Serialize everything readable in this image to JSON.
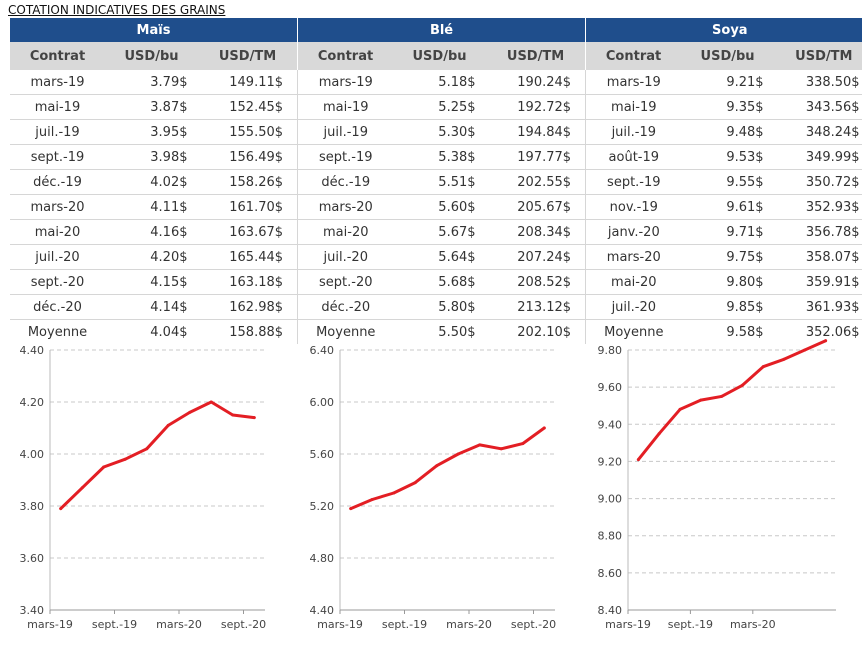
{
  "title": "COTATION INDICATIVES DES GRAINS",
  "headers": {
    "contract": "Contrat",
    "usd_bu": "USD/bu",
    "usd_tm": "USD/TM"
  },
  "groups": [
    {
      "name": "Maïs",
      "rows": [
        [
          "mars-19",
          "3.79$",
          "149.11$"
        ],
        [
          "mai-19",
          "3.87$",
          "152.45$"
        ],
        [
          "juil.-19",
          "3.95$",
          "155.50$"
        ],
        [
          "sept.-19",
          "3.98$",
          "156.49$"
        ],
        [
          "déc.-19",
          "4.02$",
          "158.26$"
        ],
        [
          "mars-20",
          "4.11$",
          "161.70$"
        ],
        [
          "mai-20",
          "4.16$",
          "163.67$"
        ],
        [
          "juil.-20",
          "4.20$",
          "165.44$"
        ],
        [
          "sept.-20",
          "4.15$",
          "163.18$"
        ],
        [
          "déc.-20",
          "4.14$",
          "162.98$"
        ],
        [
          "Moyenne",
          "4.04$",
          "158.88$"
        ]
      ]
    },
    {
      "name": "Blé",
      "rows": [
        [
          "mars-19",
          "5.18$",
          "190.24$"
        ],
        [
          "mai-19",
          "5.25$",
          "192.72$"
        ],
        [
          "juil.-19",
          "5.30$",
          "194.84$"
        ],
        [
          "sept.-19",
          "5.38$",
          "197.77$"
        ],
        [
          "déc.-19",
          "5.51$",
          "202.55$"
        ],
        [
          "mars-20",
          "5.60$",
          "205.67$"
        ],
        [
          "mai-20",
          "5.67$",
          "208.34$"
        ],
        [
          "juil.-20",
          "5.64$",
          "207.24$"
        ],
        [
          "sept.-20",
          "5.68$",
          "208.52$"
        ],
        [
          "déc.-20",
          "5.80$",
          "213.12$"
        ],
        [
          "Moyenne",
          "5.50$",
          "202.10$"
        ]
      ]
    },
    {
      "name": "Soya",
      "rows": [
        [
          "mars-19",
          "9.21$",
          "338.50$"
        ],
        [
          "mai-19",
          "9.35$",
          "343.56$"
        ],
        [
          "juil.-19",
          "9.48$",
          "348.24$"
        ],
        [
          "août-19",
          "9.53$",
          "349.99$"
        ],
        [
          "sept.-19",
          "9.55$",
          "350.72$"
        ],
        [
          "nov.-19",
          "9.61$",
          "352.93$"
        ],
        [
          "janv.-20",
          "9.71$",
          "356.78$"
        ],
        [
          "mars-20",
          "9.75$",
          "358.07$"
        ],
        [
          "mai-20",
          "9.80$",
          "359.91$"
        ],
        [
          "juil.-20",
          "9.85$",
          "361.93$"
        ],
        [
          "Moyenne",
          "9.58$",
          "352.06$"
        ]
      ]
    }
  ],
  "chart_data": [
    {
      "type": "line",
      "name": "Maïs",
      "color": "#e31e24",
      "x": [
        "mars-19",
        "mai-19",
        "juil.-19",
        "sept.-19",
        "déc.-19",
        "mars-20",
        "mai-20",
        "juil.-20",
        "sept.-20",
        "déc.-20"
      ],
      "values": [
        3.79,
        3.87,
        3.95,
        3.98,
        4.02,
        4.11,
        4.16,
        4.2,
        4.15,
        4.14
      ],
      "ylim": [
        3.4,
        4.4
      ],
      "yticks": [
        "3.40",
        "3.60",
        "3.80",
        "4.00",
        "4.20",
        "4.40"
      ],
      "xtick_labels": [
        "mars-19",
        "sept.-19",
        "mars-20",
        "sept.-20"
      ],
      "grid": true
    },
    {
      "type": "line",
      "name": "Blé",
      "color": "#e31e24",
      "x": [
        "mars-19",
        "mai-19",
        "juil.-19",
        "sept.-19",
        "déc.-19",
        "mars-20",
        "mai-20",
        "juil.-20",
        "sept.-20",
        "déc.-20"
      ],
      "values": [
        5.18,
        5.25,
        5.3,
        5.38,
        5.51,
        5.6,
        5.67,
        5.64,
        5.68,
        5.8
      ],
      "ylim": [
        4.4,
        6.4
      ],
      "yticks": [
        "4.40",
        "4.80",
        "5.20",
        "5.60",
        "6.00",
        "6.40"
      ],
      "xtick_labels": [
        "mars-19",
        "sept.-19",
        "mars-20",
        "sept.-20"
      ],
      "grid": true
    },
    {
      "type": "line",
      "name": "Soya",
      "color": "#e31e24",
      "x": [
        "mars-19",
        "mai-19",
        "juil.-19",
        "août-19",
        "sept.-19",
        "nov.-19",
        "janv.-20",
        "mars-20",
        "mai-20",
        "juil.-20"
      ],
      "values": [
        9.21,
        9.35,
        9.48,
        9.53,
        9.55,
        9.61,
        9.71,
        9.75,
        9.8,
        9.85
      ],
      "ylim": [
        8.4,
        9.8
      ],
      "yticks": [
        "8.40",
        "8.60",
        "8.80",
        "9.00",
        "9.20",
        "9.40",
        "9.60",
        "9.80"
      ],
      "xtick_labels": [
        "mars-19",
        "sept.-19",
        "mars-20"
      ],
      "grid": true
    }
  ]
}
